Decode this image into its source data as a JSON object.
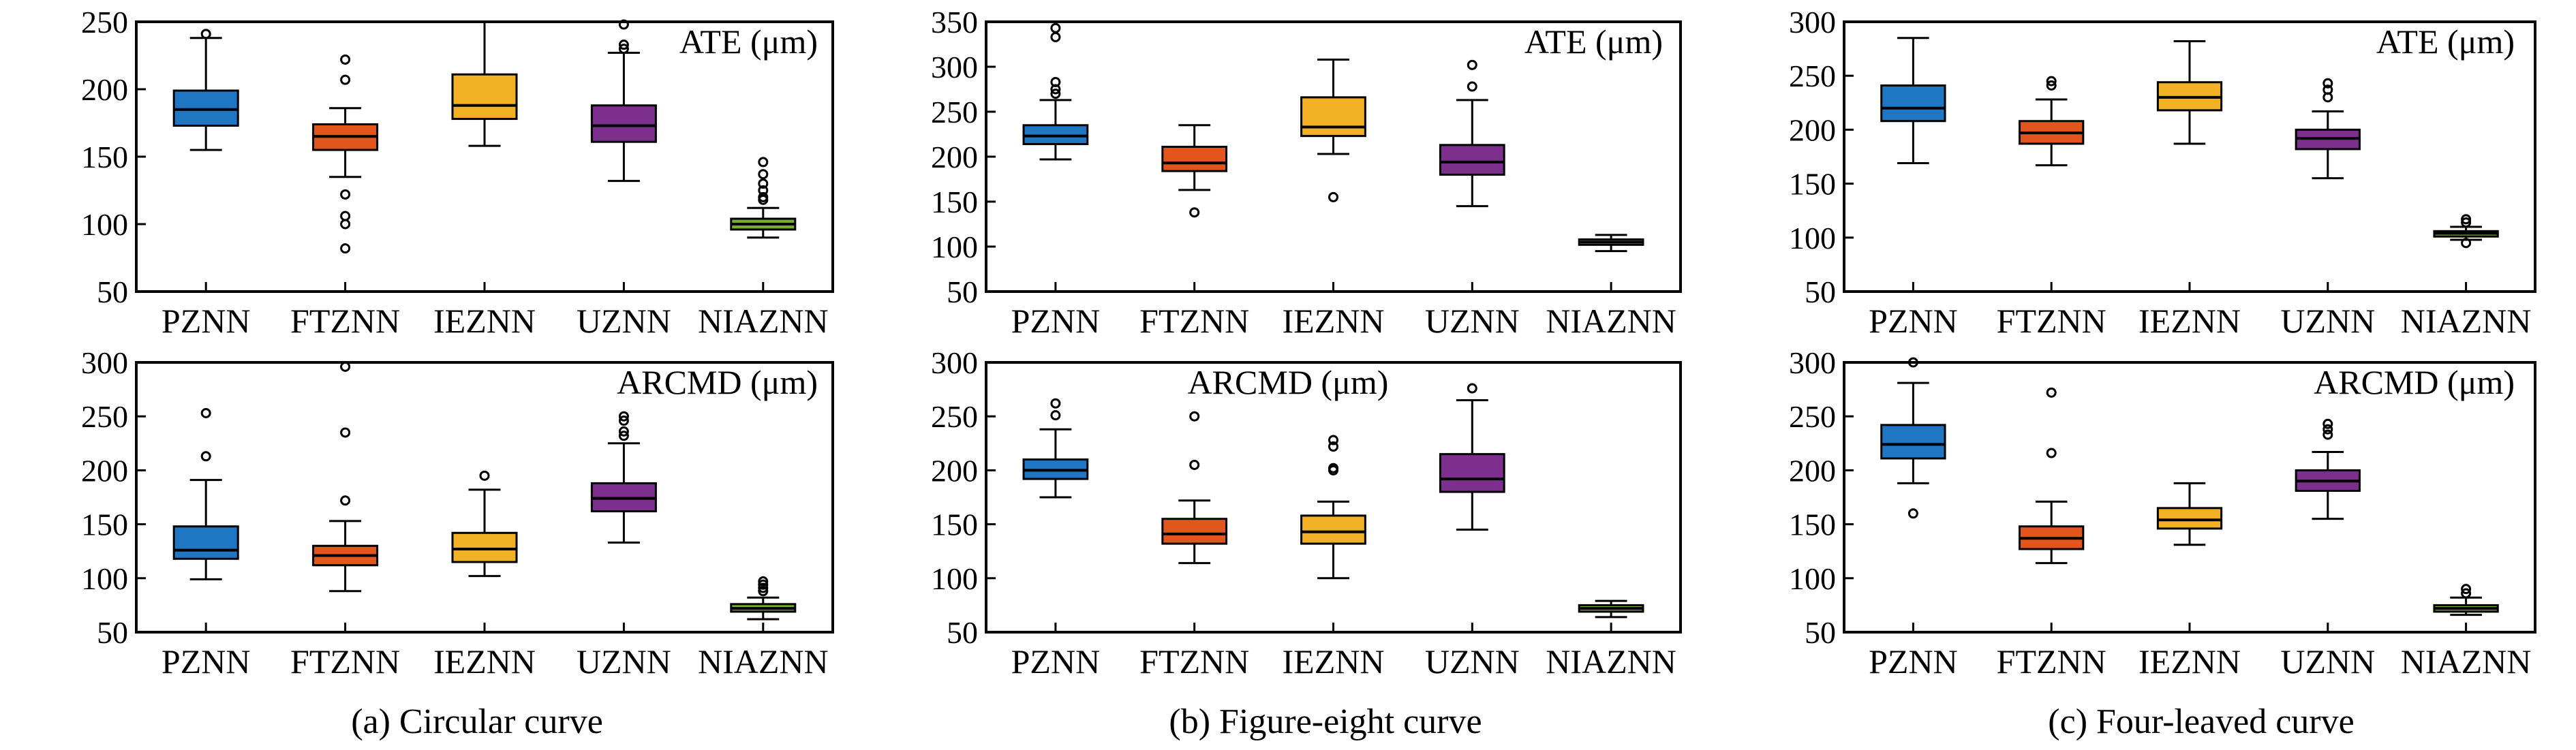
{
  "colors": {
    "PZNN": "#1f77c4",
    "FTZNN": "#e2561e",
    "IEZNN": "#f2b124",
    "UZNN": "#7d2f8e",
    "NIAZNN": "#77ac30"
  },
  "captions": [
    "(a) Circular curve",
    "(b) Figure-eight curve",
    "(c) Four-leaved curve"
  ],
  "chart_data": [
    {
      "type": "box",
      "panel": "a-top",
      "metric_label": "ATE (μm)",
      "categories": [
        "PZNN",
        "FTZNN",
        "IEZNN",
        "UZNN",
        "NIAZNN"
      ],
      "ylim": [
        50,
        250
      ],
      "yticks": [
        50,
        100,
        150,
        200,
        250
      ],
      "grid": false,
      "boxes": [
        {
          "name": "PZNN",
          "whisker_low": 155,
          "q1": 173,
          "median": 185,
          "q3": 199,
          "whisker_high": 238,
          "outliers": [
            241
          ]
        },
        {
          "name": "FTZNN",
          "whisker_low": 135,
          "q1": 155,
          "median": 165,
          "q3": 174,
          "whisker_high": 186,
          "outliers": [
            222,
            207,
            122,
            106,
            100,
            82
          ]
        },
        {
          "name": "IEZNN",
          "whisker_low": 158,
          "q1": 178,
          "median": 188,
          "q3": 211,
          "whisker_high": 250,
          "outliers": []
        },
        {
          "name": "UZNN",
          "whisker_low": 132,
          "q1": 161,
          "median": 173,
          "q3": 188,
          "whisker_high": 227,
          "outliers": [
            248,
            230,
            233
          ]
        },
        {
          "name": "NIAZNN",
          "whisker_low": 90,
          "q1": 96,
          "median": 100,
          "q3": 104,
          "whisker_high": 112,
          "outliers": [
            146,
            137,
            130,
            125,
            120,
            118
          ]
        }
      ]
    },
    {
      "type": "box",
      "panel": "b-top",
      "metric_label": "ATE (μm)",
      "categories": [
        "PZNN",
        "FTZNN",
        "IEZNN",
        "UZNN",
        "NIAZNN"
      ],
      "ylim": [
        50,
        350
      ],
      "yticks": [
        50,
        100,
        150,
        200,
        250,
        300,
        350
      ],
      "grid": false,
      "boxes": [
        {
          "name": "PZNN",
          "whisker_low": 197,
          "q1": 214,
          "median": 223,
          "q3": 235,
          "whisker_high": 263,
          "outliers": [
            343,
            333,
            283,
            275,
            270
          ]
        },
        {
          "name": "FTZNN",
          "whisker_low": 163,
          "q1": 184,
          "median": 193,
          "q3": 211,
          "whisker_high": 235,
          "outliers": [
            138
          ]
        },
        {
          "name": "IEZNN",
          "whisker_low": 203,
          "q1": 223,
          "median": 233,
          "q3": 266,
          "whisker_high": 308,
          "outliers": [
            155
          ]
        },
        {
          "name": "UZNN",
          "whisker_low": 145,
          "q1": 180,
          "median": 194,
          "q3": 213,
          "whisker_high": 263,
          "outliers": [
            302,
            278
          ]
        },
        {
          "name": "NIAZNN",
          "whisker_low": 95,
          "q1": 102,
          "median": 105,
          "q3": 108,
          "whisker_high": 113,
          "outliers": []
        }
      ]
    },
    {
      "type": "box",
      "panel": "c-top",
      "metric_label": "ATE (μm)",
      "categories": [
        "PZNN",
        "FTZNN",
        "IEZNN",
        "UZNN",
        "NIAZNN"
      ],
      "ylim": [
        50,
        300
      ],
      "yticks": [
        50,
        100,
        150,
        200,
        250,
        300
      ],
      "grid": false,
      "boxes": [
        {
          "name": "PZNN",
          "whisker_low": 169,
          "q1": 208,
          "median": 220,
          "q3": 241,
          "whisker_high": 285,
          "outliers": []
        },
        {
          "name": "FTZNN",
          "whisker_low": 167,
          "q1": 187,
          "median": 197,
          "q3": 208,
          "whisker_high": 228,
          "outliers": [
            245,
            241
          ]
        },
        {
          "name": "IEZNN",
          "whisker_low": 187,
          "q1": 218,
          "median": 230,
          "q3": 244,
          "whisker_high": 282,
          "outliers": []
        },
        {
          "name": "UZNN",
          "whisker_low": 155,
          "q1": 182,
          "median": 192,
          "q3": 200,
          "whisker_high": 217,
          "outliers": [
            243,
            237,
            230
          ]
        },
        {
          "name": "NIAZNN",
          "whisker_low": 98,
          "q1": 101,
          "median": 104,
          "q3": 106,
          "whisker_high": 110,
          "outliers": [
            117,
            114,
            95
          ]
        }
      ]
    },
    {
      "type": "box",
      "panel": "a-bottom",
      "metric_label": "ARCMD (μm)",
      "categories": [
        "PZNN",
        "FTZNN",
        "IEZNN",
        "UZNN",
        "NIAZNN"
      ],
      "ylim": [
        50,
        300
      ],
      "yticks": [
        50,
        100,
        150,
        200,
        250,
        300
      ],
      "grid": false,
      "boxes": [
        {
          "name": "PZNN",
          "whisker_low": 99,
          "q1": 118,
          "median": 126,
          "q3": 148,
          "whisker_high": 191,
          "outliers": [
            253,
            213
          ]
        },
        {
          "name": "FTZNN",
          "whisker_low": 88,
          "q1": 112,
          "median": 121,
          "q3": 130,
          "whisker_high": 153,
          "outliers": [
            296,
            235,
            172
          ]
        },
        {
          "name": "IEZNN",
          "whisker_low": 102,
          "q1": 115,
          "median": 127,
          "q3": 142,
          "whisker_high": 182,
          "outliers": [
            195
          ]
        },
        {
          "name": "UZNN",
          "whisker_low": 133,
          "q1": 162,
          "median": 174,
          "q3": 188,
          "whisker_high": 225,
          "outliers": [
            250,
            246,
            236,
            232
          ]
        },
        {
          "name": "NIAZNN",
          "whisker_low": 62,
          "q1": 69,
          "median": 72,
          "q3": 76,
          "whisker_high": 82,
          "outliers": [
            97,
            94,
            91,
            88
          ]
        }
      ]
    },
    {
      "type": "box",
      "panel": "b-bottom",
      "metric_label": "ARCMD (μm)",
      "categories": [
        "PZNN",
        "FTZNN",
        "IEZNN",
        "UZNN",
        "NIAZNN"
      ],
      "ylim": [
        50,
        300
      ],
      "yticks": [
        50,
        100,
        150,
        200,
        250,
        300
      ],
      "grid": false,
      "boxes": [
        {
          "name": "PZNN",
          "whisker_low": 175,
          "q1": 192,
          "median": 200,
          "q3": 210,
          "whisker_high": 238,
          "outliers": [
            262,
            251
          ]
        },
        {
          "name": "FTZNN",
          "whisker_low": 114,
          "q1": 132,
          "median": 141,
          "q3": 155,
          "whisker_high": 172,
          "outliers": [
            250,
            205
          ]
        },
        {
          "name": "IEZNN",
          "whisker_low": 100,
          "q1": 132,
          "median": 143,
          "q3": 158,
          "whisker_high": 171,
          "outliers": [
            228,
            222,
            202,
            200
          ]
        },
        {
          "name": "UZNN",
          "whisker_low": 145,
          "q1": 180,
          "median": 192,
          "q3": 215,
          "whisker_high": 265,
          "outliers": [
            276
          ]
        },
        {
          "name": "NIAZNN",
          "whisker_low": 64,
          "q1": 69,
          "median": 72,
          "q3": 75,
          "whisker_high": 79,
          "outliers": []
        }
      ]
    },
    {
      "type": "box",
      "panel": "c-bottom",
      "metric_label": "ARCMD (μm)",
      "categories": [
        "PZNN",
        "FTZNN",
        "IEZNN",
        "UZNN",
        "NIAZNN"
      ],
      "ylim": [
        50,
        300
      ],
      "yticks": [
        50,
        100,
        150,
        200,
        250,
        300
      ],
      "grid": false,
      "boxes": [
        {
          "name": "PZNN",
          "whisker_low": 188,
          "q1": 211,
          "median": 224,
          "q3": 242,
          "whisker_high": 281,
          "outliers": [
            300,
            160
          ]
        },
        {
          "name": "FTZNN",
          "whisker_low": 114,
          "q1": 127,
          "median": 137,
          "q3": 148,
          "whisker_high": 171,
          "outliers": [
            272,
            216
          ]
        },
        {
          "name": "IEZNN",
          "whisker_low": 131,
          "q1": 146,
          "median": 154,
          "q3": 165,
          "whisker_high": 188,
          "outliers": []
        },
        {
          "name": "UZNN",
          "whisker_low": 155,
          "q1": 181,
          "median": 190,
          "q3": 200,
          "whisker_high": 217,
          "outliers": [
            243,
            238,
            233
          ]
        },
        {
          "name": "NIAZNN",
          "whisker_low": 66,
          "q1": 69,
          "median": 72,
          "q3": 75,
          "whisker_high": 82,
          "outliers": [
            90,
            86
          ]
        }
      ]
    }
  ]
}
